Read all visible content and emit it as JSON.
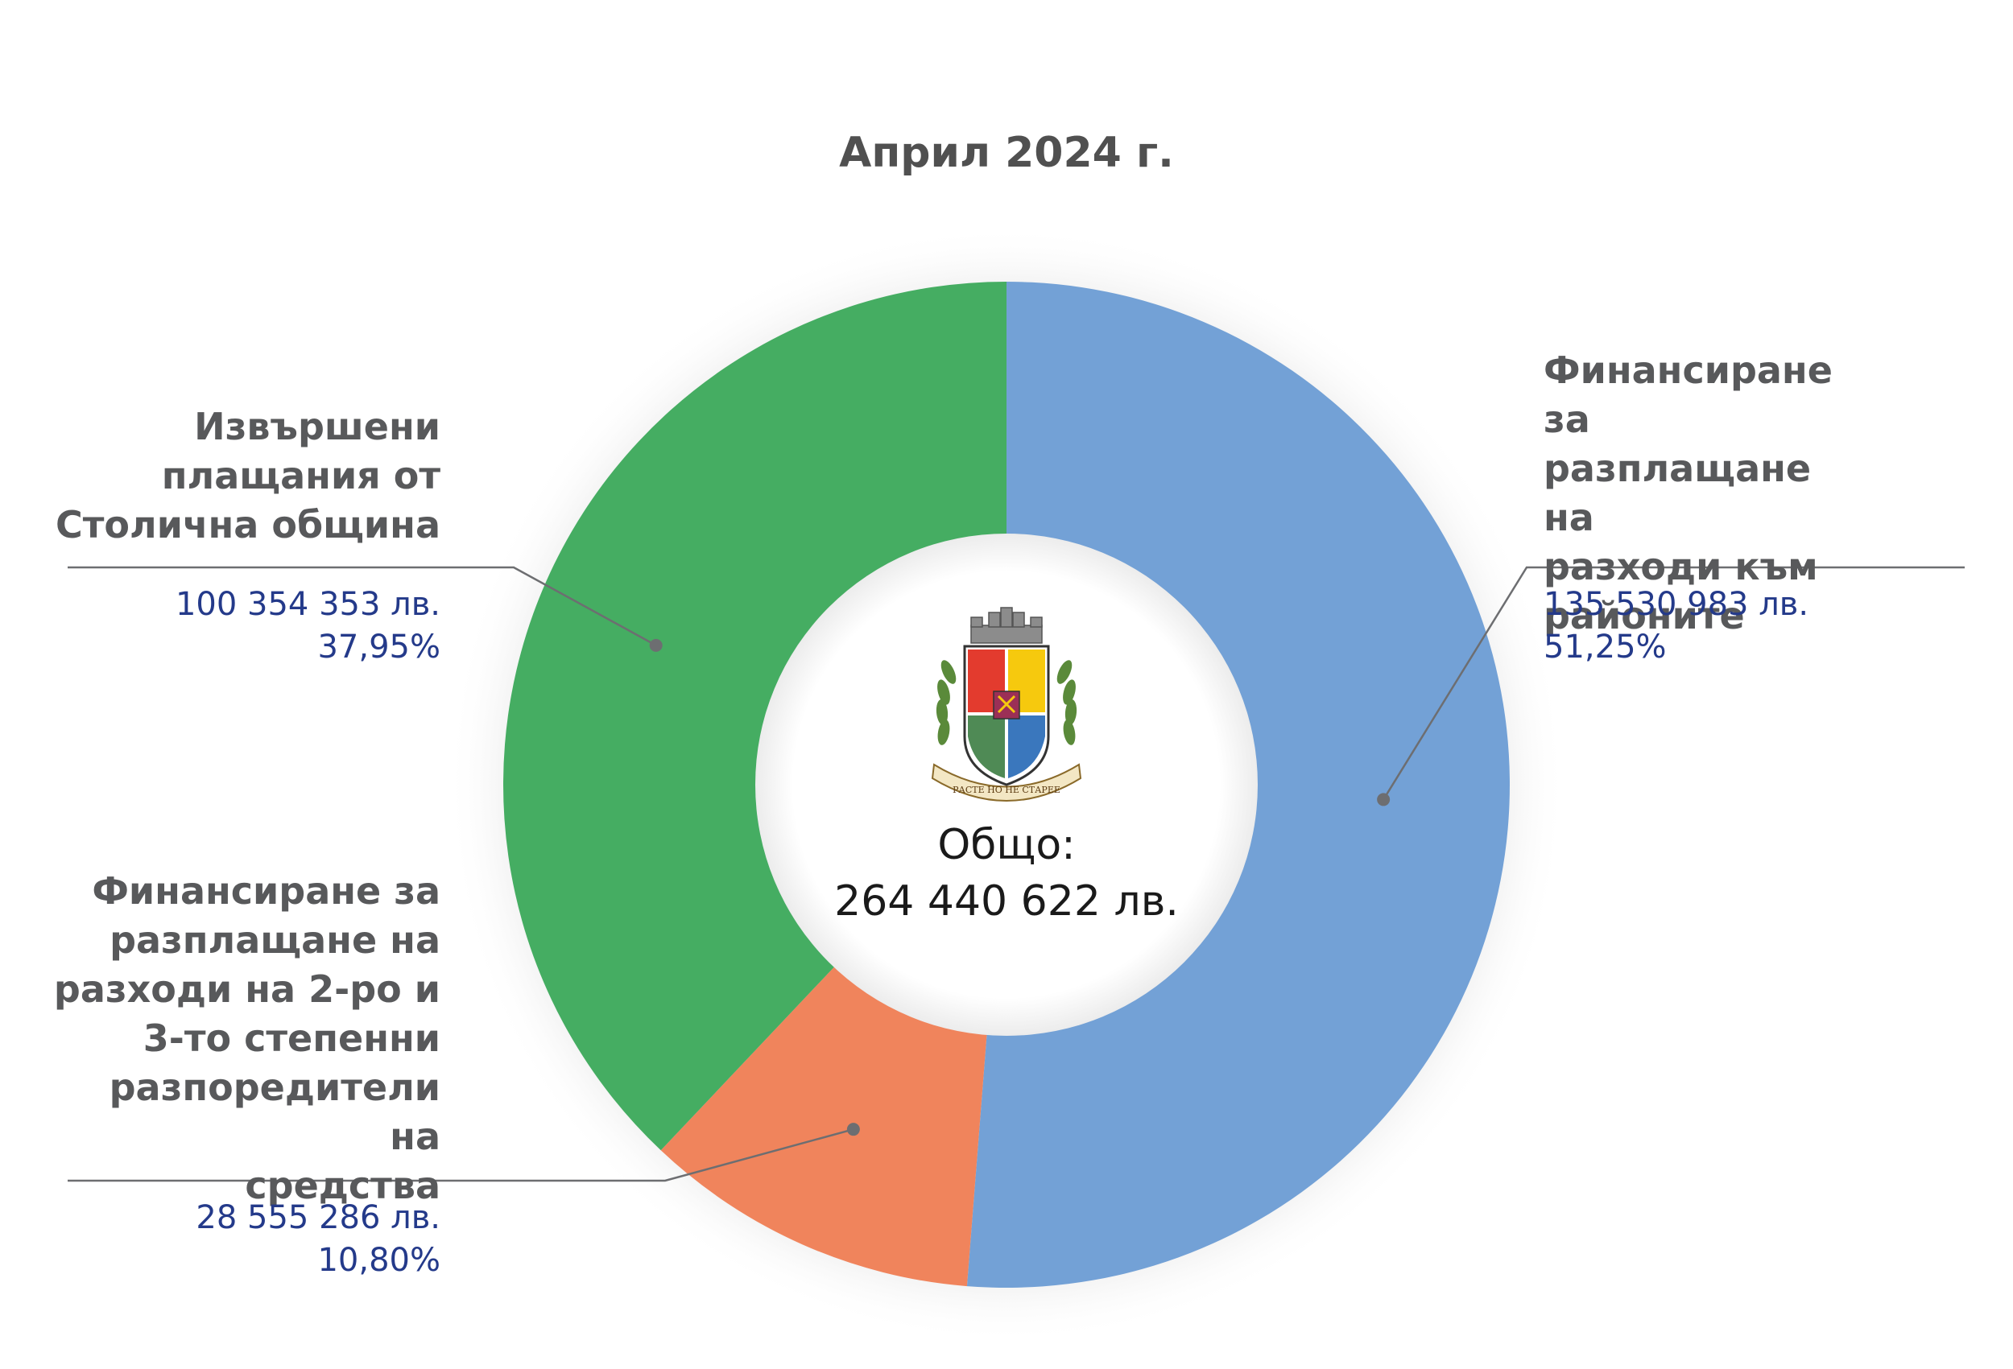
{
  "chart_data": {
    "type": "pie",
    "title": "Април  2024 г.",
    "center_label": "Общо:",
    "center_value": "264 440 622 лв.",
    "colors": {
      "blue": "#73a1d6",
      "green": "#45ad62",
      "orange": "#f0845c",
      "leader": "#6d6e71",
      "label_text": "#58595b",
      "value_text": "#243a8a",
      "title_text": "#505050"
    },
    "slices": [
      {
        "label": "Финансиране за\nразплащане на\nразходи към\nрайоните",
        "value": 135530983,
        "value_text": "135 530 983 лв.",
        "percent": 51.25,
        "percent_text": "51,25%",
        "color": "#73a1d6"
      },
      {
        "label": "Финансиране за\nразплащане на\nразходи на 2-ро и\n3-то степенни\nразпоредители на\nсредства",
        "value": 28555286,
        "value_text": "28 555 286 лв.",
        "percent": 10.8,
        "percent_text": "10,80%",
        "color": "#f0845c"
      },
      {
        "label": "Извършени\nплащания от\nСтолична община",
        "value": 100354353,
        "value_text": "100 354 353 лв.",
        "percent": 37.95,
        "percent_text": "37,95%",
        "color": "#45ad62"
      }
    ]
  },
  "emblem": {
    "icon": "sofia-coat-of-arms-icon",
    "motto": "РАСТЕ НО НЕ СТАРЕЕ"
  }
}
